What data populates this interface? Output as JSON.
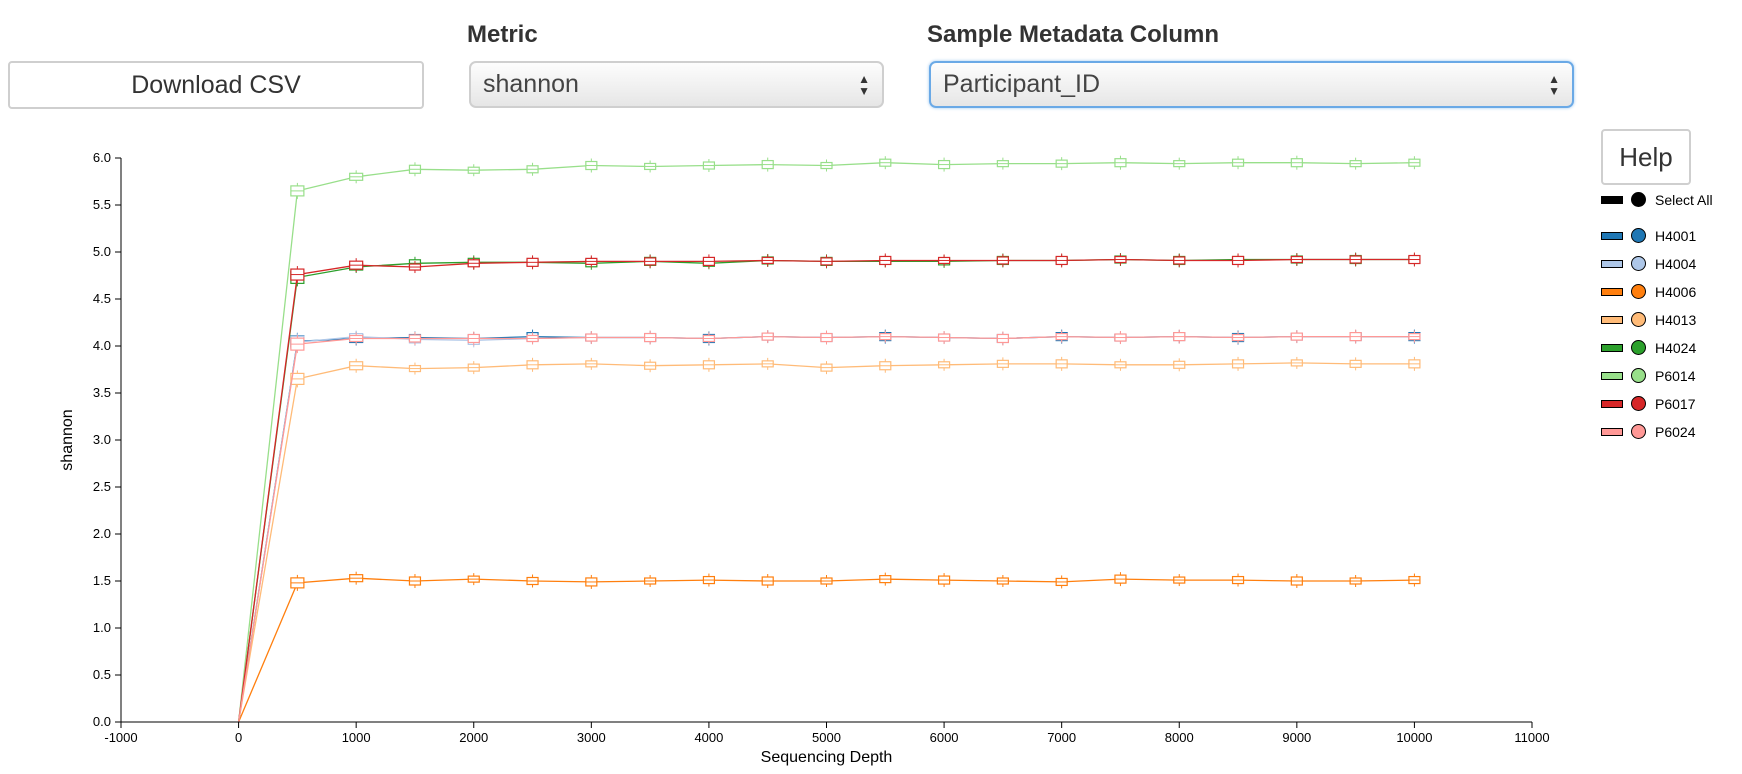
{
  "controls": {
    "download_label": "Download CSV",
    "metric_label": "Metric",
    "metric_value": "shannon",
    "column_label": "Sample Metadata Column",
    "column_value": "Participant_ID",
    "help_label": "Help"
  },
  "legend": {
    "select_all_label": "Select All",
    "select_all_color": "#000000",
    "items": [
      {
        "label": "H4001",
        "color": "#1f77b4"
      },
      {
        "label": "H4004",
        "color": "#aec7e8"
      },
      {
        "label": "H4006",
        "color": "#ff7f0e"
      },
      {
        "label": "H4013",
        "color": "#ffbb78"
      },
      {
        "label": "H4024",
        "color": "#2ca02c"
      },
      {
        "label": "P6014",
        "color": "#98df8a"
      },
      {
        "label": "P6017",
        "color": "#d62728"
      },
      {
        "label": "P6024",
        "color": "#ff9896"
      }
    ]
  },
  "chart_data": {
    "type": "line",
    "xlabel": "Sequencing Depth",
    "ylabel": "shannon",
    "xlim": [
      -1000,
      11000
    ],
    "ylim": [
      0,
      6
    ],
    "xticks": [
      -1000,
      0,
      1000,
      2000,
      3000,
      4000,
      5000,
      6000,
      7000,
      8000,
      9000,
      10000,
      11000
    ],
    "yticks": [
      "0.0",
      "0.5",
      "1.0",
      "1.5",
      "2.0",
      "2.5",
      "3.0",
      "3.5",
      "4.0",
      "4.5",
      "5.0",
      "5.5",
      "6.0"
    ],
    "x": [
      0,
      500,
      1000,
      1500,
      2000,
      2500,
      3000,
      3500,
      4000,
      4500,
      5000,
      5500,
      6000,
      6500,
      7000,
      7500,
      8000,
      8500,
      9000,
      9500,
      10000
    ],
    "grid": false,
    "legend_position": "right",
    "series": [
      {
        "name": "H4001",
        "color": "#1f77b4",
        "values": [
          0,
          4.05,
          4.08,
          4.09,
          4.08,
          4.1,
          4.09,
          4.09,
          4.08,
          4.1,
          4.09,
          4.1,
          4.09,
          4.08,
          4.1,
          4.09,
          4.1,
          4.09,
          4.1,
          4.1,
          4.1
        ]
      },
      {
        "name": "H4004",
        "color": "#aec7e8",
        "values": [
          0,
          4.04,
          4.1,
          4.07,
          4.06,
          4.08,
          4.09,
          4.09,
          4.08,
          4.1,
          4.09,
          4.1,
          4.09,
          4.08,
          4.1,
          4.09,
          4.1,
          4.09,
          4.1,
          4.1,
          4.1
        ]
      },
      {
        "name": "H4006",
        "color": "#ff7f0e",
        "values": [
          0,
          1.48,
          1.53,
          1.5,
          1.52,
          1.5,
          1.49,
          1.5,
          1.51,
          1.5,
          1.5,
          1.52,
          1.51,
          1.5,
          1.49,
          1.52,
          1.51,
          1.51,
          1.5,
          1.5,
          1.51
        ]
      },
      {
        "name": "H4013",
        "color": "#ffbb78",
        "values": [
          0,
          3.65,
          3.79,
          3.76,
          3.77,
          3.8,
          3.81,
          3.79,
          3.8,
          3.81,
          3.77,
          3.79,
          3.8,
          3.81,
          3.81,
          3.8,
          3.8,
          3.81,
          3.82,
          3.81,
          3.81
        ]
      },
      {
        "name": "H4024",
        "color": "#2ca02c",
        "values": [
          0,
          4.73,
          4.84,
          4.88,
          4.89,
          4.89,
          4.88,
          4.9,
          4.88,
          4.91,
          4.9,
          4.9,
          4.9,
          4.91,
          4.91,
          4.92,
          4.91,
          4.92,
          4.92,
          4.92,
          4.92
        ]
      },
      {
        "name": "P6014",
        "color": "#98df8a",
        "values": [
          0,
          5.65,
          5.8,
          5.88,
          5.87,
          5.88,
          5.92,
          5.91,
          5.92,
          5.93,
          5.92,
          5.95,
          5.93,
          5.94,
          5.94,
          5.95,
          5.94,
          5.95,
          5.95,
          5.94,
          5.95
        ]
      },
      {
        "name": "P6017",
        "color": "#d62728",
        "values": [
          0,
          4.76,
          4.86,
          4.84,
          4.88,
          4.89,
          4.9,
          4.9,
          4.9,
          4.91,
          4.9,
          4.91,
          4.91,
          4.91,
          4.91,
          4.92,
          4.91,
          4.91,
          4.92,
          4.92,
          4.92
        ]
      },
      {
        "name": "P6024",
        "color": "#ff9896",
        "values": [
          0,
          4.02,
          4.08,
          4.08,
          4.08,
          4.08,
          4.09,
          4.09,
          4.08,
          4.1,
          4.09,
          4.1,
          4.09,
          4.08,
          4.1,
          4.09,
          4.1,
          4.09,
          4.1,
          4.1,
          4.1
        ]
      }
    ]
  }
}
